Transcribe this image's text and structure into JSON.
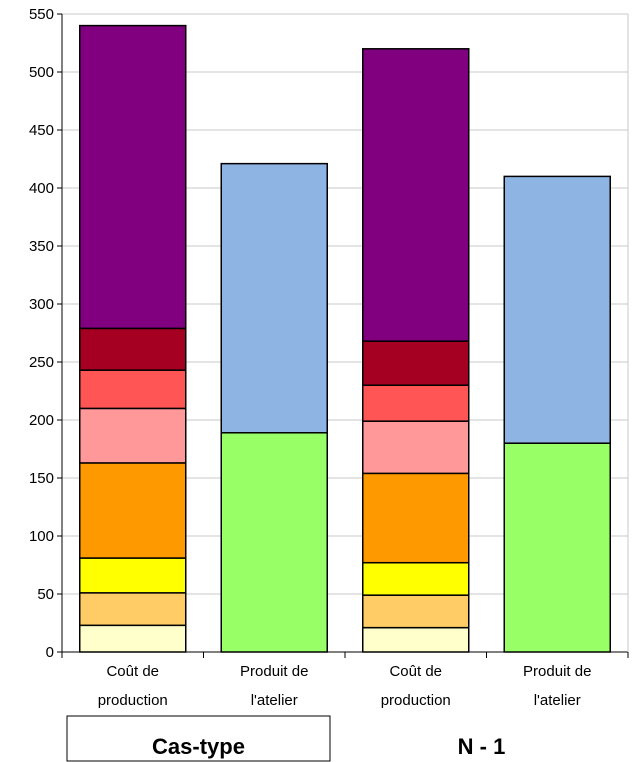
{
  "chart_data": {
    "type": "bar",
    "stacked": true,
    "ylim": [
      0,
      550
    ],
    "yticks": [
      "0",
      "50",
      "100",
      "150",
      "200",
      "250",
      "300",
      "350",
      "400",
      "450",
      "500",
      "550"
    ],
    "grid": true,
    "categories": [
      {
        "line1": "Coût de",
        "line2": "production"
      },
      {
        "line1": "Produit de",
        "line2": "l'atelier"
      },
      {
        "line1": "Coût de",
        "line2": "production"
      },
      {
        "line1": "Produit de",
        "line2": "l'atelier"
      }
    ],
    "groups": [
      {
        "label": "Cas-type",
        "boxed": true
      },
      {
        "label": "N - 1",
        "boxed": false
      }
    ],
    "bars": [
      {
        "segments": [
          {
            "value": 23,
            "color": "#ffffcc"
          },
          {
            "value": 28,
            "color": "#ffcc66"
          },
          {
            "value": 30,
            "color": "#ffff00"
          },
          {
            "value": 82,
            "color": "#ff9900"
          },
          {
            "value": 47,
            "color": "#ff9999"
          },
          {
            "value": 33,
            "color": "#ff5555"
          },
          {
            "value": 36,
            "color": "#a50021"
          },
          {
            "value": 261,
            "color": "#800080"
          }
        ]
      },
      {
        "segments": [
          {
            "value": 189,
            "color": "#99ff66"
          },
          {
            "value": 232,
            "color": "#8eb4e3"
          }
        ]
      },
      {
        "segments": [
          {
            "value": 21,
            "color": "#ffffcc"
          },
          {
            "value": 28,
            "color": "#ffcc66"
          },
          {
            "value": 28,
            "color": "#ffff00"
          },
          {
            "value": 77,
            "color": "#ff9900"
          },
          {
            "value": 45,
            "color": "#ff9999"
          },
          {
            "value": 31,
            "color": "#ff5555"
          },
          {
            "value": 38,
            "color": "#a50021"
          },
          {
            "value": 252,
            "color": "#800080"
          }
        ]
      },
      {
        "segments": [
          {
            "value": 180,
            "color": "#99ff66"
          },
          {
            "value": 230,
            "color": "#8eb4e3"
          }
        ]
      }
    ]
  }
}
